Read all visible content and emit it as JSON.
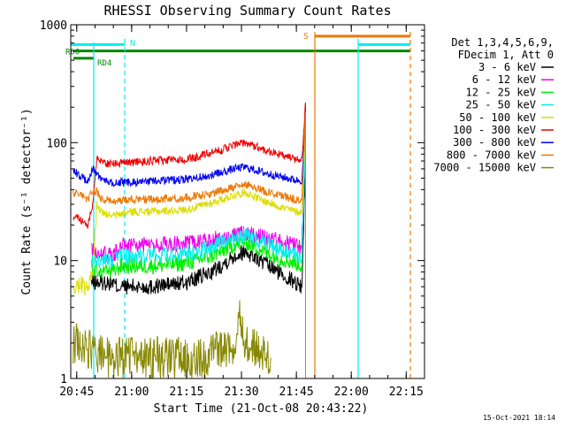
{
  "chart_data": {
    "type": "line",
    "title": "RHESSI Observing Summary Count Rates",
    "xlabel": "Start Time (21-Oct-08 20:43:22)",
    "ylabel": "Count Rate (s⁻¹ detector⁻¹)",
    "y_scale": "log",
    "ylim": [
      1,
      1000
    ],
    "xlim": [
      "20:43:22",
      "22:20:00"
    ],
    "x_ticks": [
      "20:45",
      "21:00",
      "21:15",
      "21:30",
      "21:45",
      "22:00",
      "22:15"
    ],
    "y_ticks": [
      "1",
      "10",
      "100",
      "1000"
    ],
    "grid": false,
    "background": "#ffffff",
    "axis_color": "#000000",
    "legend": {
      "placement": "right",
      "header": [
        "Det 1,3,4,5,6,9,",
        "FDecim 1, Att 0"
      ]
    },
    "series": [
      {
        "name": "3 - 6 keV",
        "color": "#000000",
        "x": [
          "20:49:00",
          "20:55:00",
          "20:56:00",
          "21:05:00",
          "21:15:00",
          "21:22:00",
          "21:28:00",
          "21:31:00",
          "21:35:00",
          "21:40:00",
          "21:45:00",
          "21:46:30",
          "21:47:30"
        ],
        "y": [
          6.5,
          6.5,
          6.0,
          6.0,
          6.5,
          8.0,
          11.0,
          12.0,
          10.0,
          8.0,
          6.5,
          6.0,
          70
        ]
      },
      {
        "name": "6 - 12 keV",
        "color": "#ee00ee",
        "x": [
          "20:49:00",
          "20:55:00",
          "20:57:00",
          "21:05:00",
          "21:15:00",
          "21:22:00",
          "21:28:00",
          "21:31:00",
          "21:35:00",
          "21:40:00",
          "21:45:00",
          "21:46:30",
          "21:47:30"
        ],
        "y": [
          12,
          11,
          13.5,
          13.5,
          14,
          15,
          16.5,
          17,
          16,
          14.5,
          13.5,
          13,
          100
        ]
      },
      {
        "name": "12 - 25 keV",
        "color": "#00ee00",
        "x": [
          "20:49:00",
          "20:55:00",
          "20:57:00",
          "21:05:00",
          "21:15:00",
          "21:22:00",
          "21:28:00",
          "21:31:00",
          "21:35:00",
          "21:40:00",
          "21:45:00",
          "21:46:30",
          "21:47:30"
        ],
        "y": [
          8,
          8,
          9,
          9,
          9.5,
          11,
          13.5,
          14.5,
          12.5,
          10.5,
          9.5,
          9,
          100
        ]
      },
      {
        "name": "25 - 50 keV",
        "color": "#00eeee",
        "x": [
          "20:49:00",
          "20:55:00",
          "20:57:00",
          "21:05:00",
          "21:15:00",
          "21:22:00",
          "21:28:00",
          "21:31:00",
          "21:35:00",
          "21:40:00",
          "21:45:00",
          "21:46:30",
          "21:47:30"
        ],
        "y": [
          10,
          10,
          11,
          11,
          11.5,
          13,
          15.5,
          16.5,
          14.5,
          12.5,
          11,
          11,
          100
        ]
      },
      {
        "name": "50 - 100 keV",
        "color": "#dddd00",
        "x": [
          "20:44:00",
          "20:46:00",
          "20:48:00",
          "20:49:30",
          "20:50:30",
          "20:52:00",
          "20:55:00",
          "21:00:00",
          "21:05:00",
          "21:15:00",
          "21:22:00",
          "21:28:00",
          "21:31:00",
          "21:35:00",
          "21:40:00",
          "21:45:00",
          "21:46:30",
          "21:47:30"
        ],
        "y": [
          5.5,
          6.5,
          5.5,
          8.5,
          30,
          25,
          24,
          26,
          26,
          27,
          31,
          36,
          38,
          33,
          29,
          26,
          26,
          140
        ]
      },
      {
        "name": "100 - 300 keV",
        "color": "#ee0000",
        "x": [
          "20:44:00",
          "20:46:00",
          "20:48:00",
          "20:49:30",
          "20:50:30",
          "20:52:00",
          "20:55:00",
          "21:00:00",
          "21:05:00",
          "21:15:00",
          "21:22:00",
          "21:28:00",
          "21:31:00",
          "21:35:00",
          "21:40:00",
          "21:45:00",
          "21:46:30",
          "21:47:30"
        ],
        "y": [
          24,
          22,
          20,
          30,
          75,
          68,
          66,
          68,
          70,
          72,
          82,
          95,
          100,
          90,
          80,
          72,
          72,
          220
        ]
      },
      {
        "name": "300 - 800 keV",
        "color": "#0000ee",
        "x": [
          "20:44:00",
          "20:46:00",
          "20:48:00",
          "20:49:30",
          "20:50:30",
          "20:52:00",
          "20:55:00",
          "21:00:00",
          "21:05:00",
          "21:15:00",
          "21:22:00",
          "21:28:00",
          "21:31:00",
          "21:35:00",
          "21:40:00",
          "21:45:00",
          "21:46:30",
          "21:47:30"
        ],
        "y": [
          58,
          52,
          47,
          60,
          55,
          48,
          46,
          46,
          47,
          49,
          53,
          60,
          62,
          57,
          52,
          48,
          48,
          150
        ]
      },
      {
        "name": "800 - 7000 keV",
        "color": "#ee7700",
        "x": [
          "20:44:00",
          "20:46:00",
          "20:48:00",
          "20:49:30",
          "20:50:30",
          "20:52:00",
          "20:55:00",
          "21:00:00",
          "21:05:00",
          "21:15:00",
          "21:22:00",
          "21:28:00",
          "21:31:00",
          "21:35:00",
          "21:40:00",
          "21:45:00",
          "21:46:30",
          "21:47:30"
        ],
        "y": [
          38,
          36,
          33,
          40,
          38,
          33,
          32,
          33,
          33,
          34,
          37,
          42,
          44,
          40,
          36,
          33,
          33,
          180
        ]
      },
      {
        "name": "7000 - 15000 keV",
        "color": "#888800",
        "x": [
          "20:44:00",
          "20:53:00",
          "21:20:00",
          "21:28:00",
          "21:29:30",
          "21:31:00",
          "21:38:00"
        ],
        "y": [
          2.0,
          1.5,
          1.5,
          2.0,
          4.0,
          2.0,
          1.5
        ]
      }
    ],
    "flags": [
      {
        "label": "RD0",
        "color": "#008800",
        "y": 600
      },
      {
        "label": "RD4",
        "color": "#008800",
        "y": 520
      },
      {
        "label": "N",
        "color": "#00eeee"
      },
      {
        "label": "S",
        "color": "#ee7700"
      }
    ],
    "footer_timestamp": "15-Oct-2021 18:14"
  }
}
